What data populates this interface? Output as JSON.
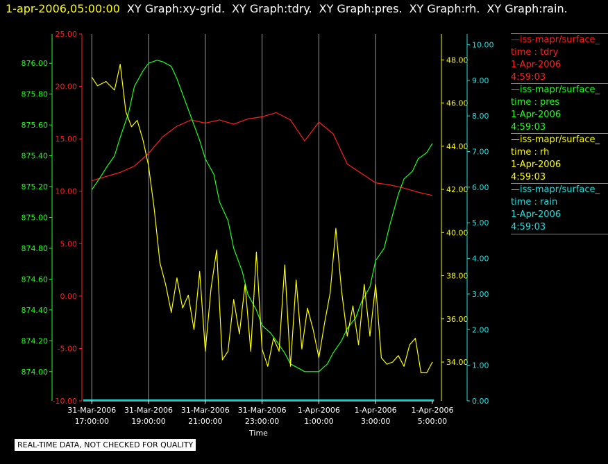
{
  "header": {
    "timestamp": "1-apr-2006,05:00:00",
    "titles": [
      "XY Graph:xy-grid.",
      "XY Graph:tdry.",
      "XY Graph:pres.",
      "XY Graph:rh.",
      "XY Graph:rain."
    ]
  },
  "legend": [
    {
      "source": "—iss-mapr/surface_",
      "field": "time : tdry",
      "date": "1-Apr-2006",
      "time": "4:59:03",
      "color": "#ff2020"
    },
    {
      "source": "—iss-mapr/surface_",
      "field": "time : pres",
      "date": "1-Apr-2006",
      "time": "4:59:03",
      "color": "#20ff20"
    },
    {
      "source": "—iss-mapr/surface_",
      "field": "time : rh",
      "date": "1-Apr-2006",
      "time": "4:59:03",
      "color": "#ffff00"
    },
    {
      "source": "—iss-mapr/surface_",
      "field": "time : rain",
      "date": "1-Apr-2006",
      "time": "4:59:03",
      "color": "#20e0e0"
    }
  ],
  "notice": "REAL-TIME DATA, NOT CHECKED FOR QUALITY",
  "chart_data": {
    "type": "line",
    "xlabel": "Time",
    "x_range_hours": [
      -12.3,
      0.05
    ],
    "x_ticks": [
      {
        "h": -12,
        "l1": "31-Mar-2006",
        "l2": "17:00:00"
      },
      {
        "h": -10,
        "l1": "31-Mar-2006",
        "l2": "19:00:00"
      },
      {
        "h": -8,
        "l1": "31-Mar-2006",
        "l2": "21:00:00"
      },
      {
        "h": -6,
        "l1": "31-Mar-2006",
        "l2": "23:00:00"
      },
      {
        "h": -4,
        "l1": "1-Apr-2006",
        "l2": "1:00:00"
      },
      {
        "h": -2,
        "l1": "1-Apr-2006",
        "l2": "3:00:00"
      },
      {
        "h": 0,
        "l1": "1-Apr-2006",
        "l2": "5:00:00"
      }
    ],
    "axes": [
      {
        "id": "tdry",
        "color": "#ff2020",
        "min": -10,
        "max": 25,
        "ticks": [
          "25.00",
          "20.00",
          "15.00",
          "10.00",
          "5.00",
          "0.00",
          "-5.00",
          "-10.00"
        ]
      },
      {
        "id": "pres",
        "color": "#20ff20",
        "min": 873.81,
        "max": 876.19,
        "ticks": [
          "876.00",
          "875.80",
          "875.60",
          "875.40",
          "875.20",
          "875.00",
          "874.80",
          "874.60",
          "874.40",
          "874.20",
          "874.00"
        ]
      },
      {
        "id": "rh",
        "color": "#ffff00",
        "min": 32.2,
        "max": 49.2,
        "ticks": [
          "48.00",
          "46.00",
          "44.00",
          "42.00",
          "40.00",
          "38.00",
          "36.00",
          "34.00"
        ]
      },
      {
        "id": "rain",
        "color": "#20e0e0",
        "min": 0,
        "max": 10.3,
        "ticks": [
          "10.00",
          "9.00",
          "8.00",
          "7.00",
          "6.00",
          "5.00",
          "4.00",
          "3.00",
          "2.00",
          "1.00",
          "0.00"
        ]
      }
    ],
    "series": [
      {
        "axis": "tdry",
        "x": [
          -12,
          -11.5,
          -11,
          -10.5,
          -10,
          -9.5,
          -9,
          -8.5,
          -8,
          -7.5,
          -7,
          -6.5,
          -6,
          -5.5,
          -5,
          -4.5,
          -4,
          -3.5,
          -3,
          -2.5,
          -2,
          -1.5,
          -1,
          -0.5,
          0
        ],
        "y": [
          11,
          11.4,
          11.8,
          12.4,
          13.6,
          15.2,
          16.2,
          16.8,
          16.5,
          16.8,
          16.4,
          16.9,
          17.1,
          17.5,
          16.8,
          14.8,
          16.6,
          15.5,
          12.6,
          11.7,
          10.8,
          10.6,
          10.3,
          9.9,
          9.6
        ]
      },
      {
        "axis": "pres",
        "x": [
          -12,
          -11.7,
          -11.5,
          -11.2,
          -11,
          -10.7,
          -10.5,
          -10.2,
          -10,
          -9.7,
          -9.5,
          -9.2,
          -9,
          -8.7,
          -8.5,
          -8.2,
          -8,
          -7.7,
          -7.5,
          -7.2,
          -7,
          -6.7,
          -6.5,
          -6.2,
          -6,
          -5.7,
          -5.5,
          -5.2,
          -5,
          -4.7,
          -4.5,
          -4.2,
          -4,
          -3.7,
          -3.5,
          -3.2,
          -3,
          -2.7,
          -2.5,
          -2.2,
          -2,
          -1.7,
          -1.5,
          -1.2,
          -1,
          -0.7,
          -0.5,
          -0.2,
          0
        ],
        "y": [
          875.18,
          875.26,
          875.32,
          875.4,
          875.52,
          875.68,
          875.85,
          875.95,
          876,
          876.02,
          876.01,
          875.98,
          875.9,
          875.75,
          875.65,
          875.5,
          875.38,
          875.28,
          875.1,
          874.98,
          874.8,
          874.65,
          874.5,
          874.4,
          874.3,
          874.25,
          874.2,
          874.12,
          874.05,
          874.02,
          874,
          874,
          874,
          874.05,
          874.12,
          874.2,
          874.28,
          874.35,
          874.45,
          874.55,
          874.72,
          874.8,
          874.95,
          875.15,
          875.25,
          875.3,
          875.38,
          875.42,
          875.48
        ]
      },
      {
        "axis": "rh",
        "x": [
          -12,
          -11.8,
          -11.5,
          -11.2,
          -11,
          -10.8,
          -10.6,
          -10.4,
          -10.2,
          -10,
          -9.8,
          -9.6,
          -9.4,
          -9.2,
          -9,
          -8.8,
          -8.6,
          -8.4,
          -8.2,
          -8,
          -7.8,
          -7.6,
          -7.4,
          -7.2,
          -7,
          -6.8,
          -6.6,
          -6.4,
          -6.2,
          -6,
          -5.8,
          -5.6,
          -5.4,
          -5.2,
          -5,
          -4.8,
          -4.6,
          -4.4,
          -4.2,
          -4,
          -3.8,
          -3.6,
          -3.4,
          -3.2,
          -3,
          -2.8,
          -2.6,
          -2.4,
          -2.2,
          -2,
          -1.8,
          -1.6,
          -1.4,
          -1.2,
          -1,
          -0.8,
          -0.6,
          -0.4,
          -0.2,
          0
        ],
        "y": [
          47.2,
          46.8,
          47,
          46.6,
          47.8,
          45.6,
          44.9,
          45.2,
          44.3,
          43.1,
          41.1,
          38.6,
          37.6,
          36.3,
          37.9,
          36.5,
          37.1,
          35.5,
          38.2,
          34.5,
          37.4,
          39.2,
          34.1,
          34.5,
          36.9,
          35.3,
          37.6,
          34.5,
          39.1,
          34.6,
          33.8,
          35.1,
          34.5,
          38.5,
          33.8,
          37.8,
          34.6,
          36.5,
          35.5,
          34.2,
          35.8,
          37.2,
          40.2,
          37.3,
          35.2,
          36.6,
          34.8,
          37.6,
          35.2,
          37.6,
          34.2,
          33.9,
          34,
          34.3,
          33.8,
          34.8,
          35.1,
          33.5,
          33.5,
          34
        ]
      },
      {
        "axis": "rain",
        "x": [
          -12.3,
          0.05
        ],
        "y": [
          0.03,
          0.03
        ]
      }
    ]
  }
}
